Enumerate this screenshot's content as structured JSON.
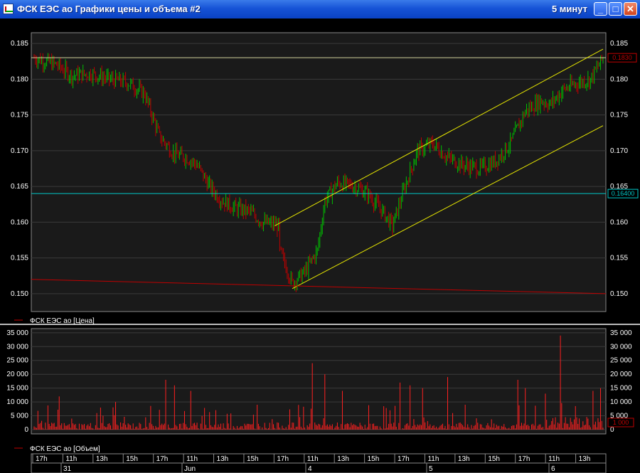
{
  "window": {
    "title": "ФСК ЕЭС ао Графики цены и объема #2",
    "interval": "5 минут",
    "minimize_label": "_",
    "maximize_label": "□",
    "close_label": "✕"
  },
  "colors": {
    "background": "#000000",
    "plot_bg": "#1a1a1a",
    "grid": "#3a3a3a",
    "up_candle": "#00c000",
    "down_candle": "#c00000",
    "channel": "#e6e600",
    "cyan_level": "#00c8c8",
    "volume": "#ff2020"
  },
  "chart_data": [
    {
      "type": "candlestick",
      "legend": "ФСК ЕЭС ао [Цена]",
      "ylim": [
        0.1475,
        0.1865
      ],
      "yticks": [
        "0.185",
        "0.180",
        "0.175",
        "0.170",
        "0.165",
        "0.160",
        "0.155",
        "0.150"
      ],
      "yticks_values": [
        0.185,
        0.18,
        0.175,
        0.17,
        0.165,
        0.16,
        0.155,
        0.15
      ],
      "last_price": 0.183,
      "last_price_label": "0.1830",
      "cyan_level": 0.164,
      "cyan_level_label": "0.16400",
      "channel_upper": [
        [
          0.1595,
          0.1842
        ]
      ],
      "channel_lower": [
        [
          0.1507,
          0.1735
        ]
      ],
      "support_line": [
        0.152,
        0.15
      ],
      "price_anchors": [
        [
          0,
          0.183
        ],
        [
          18,
          0.182
        ],
        [
          30,
          0.1805
        ],
        [
          45,
          0.1808
        ],
        [
          60,
          0.18
        ],
        [
          75,
          0.1795
        ],
        [
          88,
          0.178
        ],
        [
          100,
          0.172
        ],
        [
          112,
          0.1695
        ],
        [
          122,
          0.169
        ],
        [
          130,
          0.168
        ],
        [
          140,
          0.165
        ],
        [
          150,
          0.163
        ],
        [
          160,
          0.162
        ],
        [
          172,
          0.1615
        ],
        [
          182,
          0.16
        ],
        [
          195,
          0.1595
        ],
        [
          196,
          0.156
        ],
        [
          206,
          0.1515
        ],
        [
          216,
          0.153
        ],
        [
          226,
          0.156
        ],
        [
          232,
          0.163
        ],
        [
          242,
          0.1655
        ],
        [
          256,
          0.165
        ],
        [
          266,
          0.164
        ],
        [
          278,
          0.1615
        ],
        [
          286,
          0.1595
        ],
        [
          296,
          0.165
        ],
        [
          306,
          0.17
        ],
        [
          318,
          0.171
        ],
        [
          330,
          0.169
        ],
        [
          342,
          0.168
        ],
        [
          356,
          0.1675
        ],
        [
          368,
          0.1685
        ],
        [
          380,
          0.171
        ],
        [
          392,
          0.1755
        ],
        [
          404,
          0.177
        ],
        [
          412,
          0.1765
        ],
        [
          422,
          0.1785
        ],
        [
          434,
          0.1795
        ],
        [
          444,
          0.18
        ],
        [
          454,
          0.183
        ]
      ],
      "candle_count": 455
    },
    {
      "type": "bar",
      "legend": "ФСК ЕЭС ао [Объем]",
      "ylim": [
        0,
        36500
      ],
      "yticks": [
        "35 000",
        "30 000",
        "25 000",
        "20 000",
        "15 000",
        "10 000",
        "5 000",
        "0"
      ],
      "yticks_values": [
        35000,
        30000,
        25000,
        20000,
        15000,
        10000,
        5000,
        0
      ],
      "last_volume_label": "1 000",
      "spikes": [
        [
          20,
          12000
        ],
        [
          65,
          10000
        ],
        [
          105,
          18000
        ],
        [
          112,
          16000
        ],
        [
          125,
          14000
        ],
        [
          178,
          9000
        ],
        [
          222,
          24000
        ],
        [
          232,
          20000
        ],
        [
          246,
          14000
        ],
        [
          292,
          17000
        ],
        [
          300,
          16000
        ],
        [
          310,
          15000
        ],
        [
          330,
          19000
        ],
        [
          344,
          9000
        ],
        [
          386,
          18000
        ],
        [
          392,
          15000
        ],
        [
          408,
          13000
        ],
        [
          420,
          34000
        ],
        [
          446,
          14000
        ],
        [
          452,
          15000
        ]
      ]
    }
  ],
  "time_axis": {
    "hour_labels": [
      "17h",
      "11h",
      "13h",
      "15h",
      "17h",
      "11h",
      "13h",
      "15h",
      "17h",
      "11h",
      "13h",
      "15h",
      "17h",
      "11h",
      "13h",
      "15h",
      "17h",
      "11h",
      "13h"
    ],
    "day_labels": [
      "31",
      "Jun",
      "4",
      "5",
      "6"
    ]
  }
}
